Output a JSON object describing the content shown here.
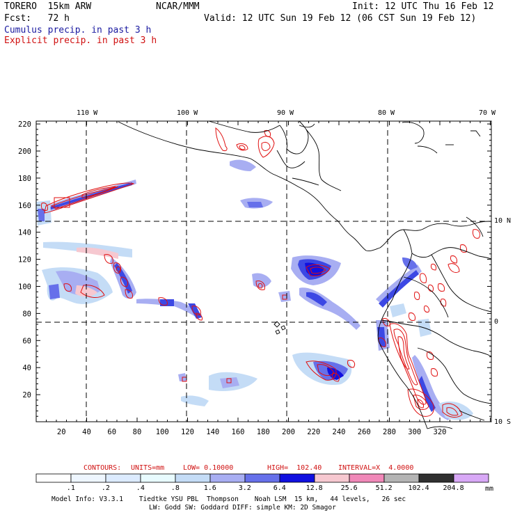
{
  "header": {
    "model": "TORERO  15km ARW",
    "center": "NCAR/MMM",
    "init": "Init: 12 UTC Thu 16 Feb 12",
    "fcst": "Fcst:   72 h",
    "valid": "Valid: 12 UTC Sun 19 Feb 12 (06 CST Sun 19 Feb 12)",
    "cumulus": "Cumulus precip. in past 3 h",
    "explicit": "Explicit precip. in past 3 h"
  },
  "axes": {
    "x_ticks": [
      "20",
      "40",
      "60",
      "80",
      "100",
      "120",
      "140",
      "160",
      "180",
      "200",
      "220",
      "240",
      "260",
      "280",
      "300",
      "320"
    ],
    "y_ticks": [
      "20",
      "40",
      "60",
      "80",
      "100",
      "120",
      "140",
      "160",
      "180",
      "200",
      "220"
    ],
    "lon_labels": [
      "110 W",
      "100 W",
      "90 W",
      "80 W",
      "70 W"
    ],
    "lat_labels": [
      "10 N",
      "0",
      "10 S"
    ]
  },
  "contour_info": {
    "label": "CONTOURS:",
    "units": "UNITS=mm",
    "low": "LOW= 0.10000",
    "high": "HIGH=  102.40",
    "interval": "INTERVAL=X  4.0000"
  },
  "colorbar": {
    "labels": [
      ".1",
      ".2",
      ".4",
      ".8",
      "1.6",
      "3.2",
      "6.4",
      "12.8",
      "25.6",
      "51.2",
      "102.4",
      "204.8"
    ],
    "unit": "mm",
    "colors": [
      "#ffffff",
      "#eef6ff",
      "#dcebff",
      "#e8fbff",
      "#c4dcf6",
      "#a8aef2",
      "#6670ea",
      "#1010e0",
      "#f6c8d0",
      "#f088b8",
      "#b4b4b4",
      "#303030",
      "#d8a8f6"
    ]
  },
  "footer": {
    "line1": "Model Info: V3.3.1    Tiedtke YSU PBL  Thompson    Noah LSM  15 km,   44 levels,   26 sec",
    "line2": "LW: Godd SW: Goddard DIFF: simple KM: 2D Smagor"
  }
}
